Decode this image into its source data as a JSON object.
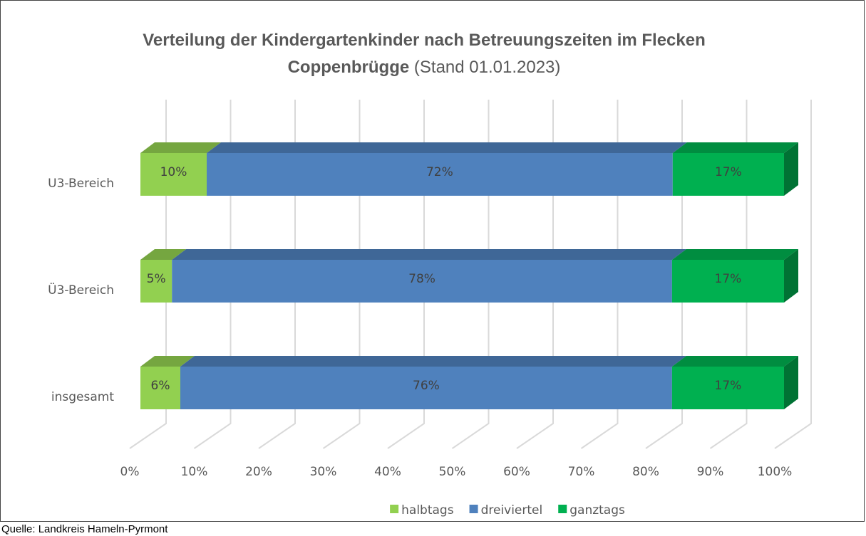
{
  "chart_data": {
    "type": "stacked_bar_3d_horizontal",
    "title": "Verteilung der Kindergartenkinder nach Betreuungszeiten im Flecken Coppenbrügge",
    "subtitle": "(Stand 01.01.2023)",
    "categories": [
      "U3-Bereich",
      "Ü3-Bereich",
      "insgesamt"
    ],
    "series": [
      {
        "name": "halbtags",
        "color": "#92d050",
        "values": [
          10.3,
          4.9,
          6.2
        ],
        "value_labels": [
          "10%",
          "5%",
          "6%"
        ]
      },
      {
        "name": "dreiviertel",
        "color": "#4f81bd",
        "values": [
          72.4,
          77.7,
          76.4
        ],
        "value_labels": [
          "72%",
          "78%",
          "76%"
        ]
      },
      {
        "name": "ganztags",
        "color": "#00b050",
        "values": [
          17.3,
          17.4,
          17.4
        ],
        "value_labels": [
          "17%",
          "17%",
          "17%"
        ]
      }
    ],
    "xlim": [
      0,
      100
    ],
    "xticks": [
      {
        "value": 0,
        "label": "0%"
      },
      {
        "value": 10,
        "label": "10%"
      },
      {
        "value": 20,
        "label": "20%"
      },
      {
        "value": 30,
        "label": "30%"
      },
      {
        "value": 40,
        "label": "40%"
      },
      {
        "value": 50,
        "label": "50%"
      },
      {
        "value": 60,
        "label": "60%"
      },
      {
        "value": 70,
        "label": "70%"
      },
      {
        "value": 80,
        "label": "80%"
      },
      {
        "value": 90,
        "label": "90%"
      },
      {
        "value": 100,
        "label": "100%"
      }
    ],
    "grid": true,
    "legend": "bottom",
    "source": "Quelle: Landkreis Hameln-Pyrmont"
  }
}
